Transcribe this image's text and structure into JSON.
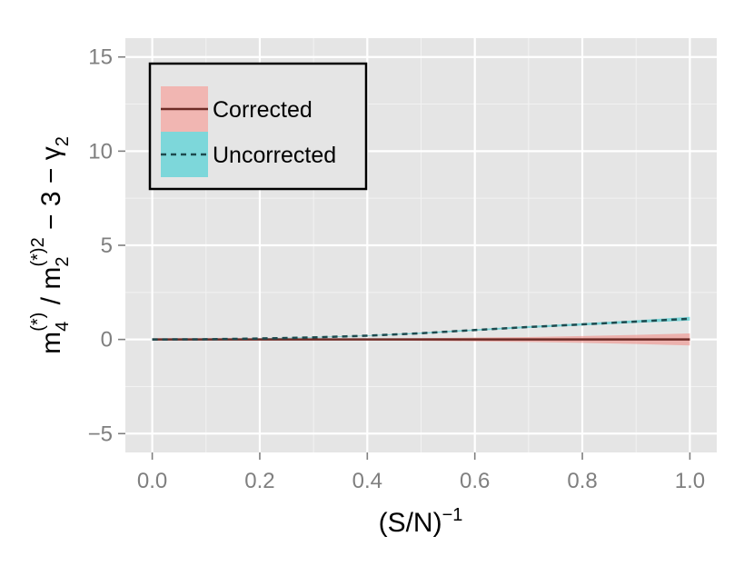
{
  "chart_data": {
    "type": "line",
    "xlabel": {
      "base": "(S/N)",
      "sup": "−1"
    },
    "ylabel": {
      "m": "m",
      "sub4": "4",
      "sup4": "(*)",
      "slash": " / ",
      "sub2": "2",
      "sup2": "(*)2",
      "tail": " − 3 − γ",
      "tailsub": "2"
    },
    "xlim": [
      -0.05,
      1.05
    ],
    "ylim": [
      -6,
      16
    ],
    "xticks": [
      0.0,
      0.2,
      0.4,
      0.6,
      0.8,
      1.0
    ],
    "xtick_labels": [
      "0.0",
      "0.2",
      "0.4",
      "0.6",
      "0.8",
      "1.0"
    ],
    "yticks": [
      -5,
      0,
      5,
      10,
      15
    ],
    "ytick_labels": [
      "−5",
      "0",
      "5",
      "10",
      "15"
    ],
    "grid": true,
    "legend_position": "top-left",
    "series": [
      {
        "name": "Corrected",
        "line_style": "solid",
        "color": "#6e2b26",
        "band_color": "#f08d87",
        "band_opacity": 0.6,
        "x": [
          0.0,
          0.1,
          0.2,
          0.3,
          0.4,
          0.5,
          0.6,
          0.7,
          0.8,
          0.9,
          1.0
        ],
        "y": [
          0,
          0,
          0,
          0,
          0,
          0,
          0,
          0,
          0,
          0,
          0
        ],
        "lower": [
          0,
          -0.01,
          -0.02,
          -0.03,
          -0.05,
          -0.07,
          -0.1,
          -0.13,
          -0.18,
          -0.24,
          -0.32
        ],
        "upper": [
          0,
          0.01,
          0.02,
          0.03,
          0.05,
          0.07,
          0.1,
          0.13,
          0.18,
          0.24,
          0.32
        ]
      },
      {
        "name": "Uncorrected",
        "line_style": "dashed",
        "color": "#1d4a4e",
        "band_color": "#2ec4c9",
        "band_opacity": 0.6,
        "x": [
          0.0,
          0.1,
          0.2,
          0.3,
          0.4,
          0.5,
          0.6,
          0.7,
          0.8,
          0.9,
          1.0
        ],
        "y": [
          0,
          0.01,
          0.05,
          0.11,
          0.2,
          0.33,
          0.5,
          0.66,
          0.8,
          0.95,
          1.1
        ],
        "lower": [
          0,
          0.0,
          0.04,
          0.09,
          0.18,
          0.3,
          0.46,
          0.61,
          0.74,
          0.88,
          1.0
        ],
        "upper": [
          0,
          0.02,
          0.06,
          0.13,
          0.22,
          0.36,
          0.54,
          0.71,
          0.86,
          1.02,
          1.2
        ]
      }
    ]
  }
}
